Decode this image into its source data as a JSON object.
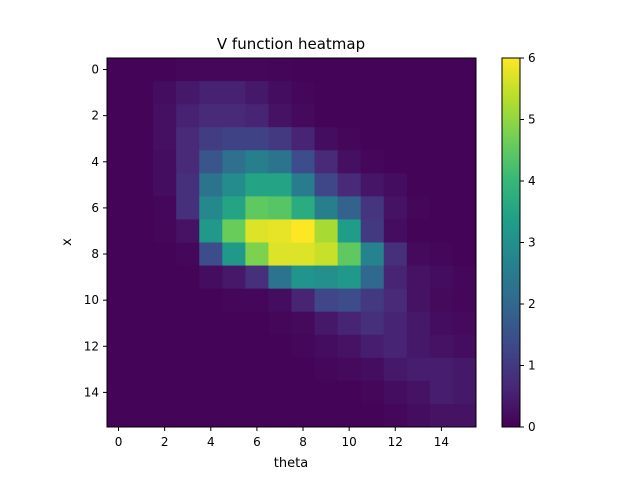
{
  "chart_data": {
    "type": "heatmap",
    "title": "V function heatmap",
    "xlabel": "theta",
    "ylabel": "x",
    "x_ticks": [
      0,
      2,
      4,
      6,
      8,
      10,
      12,
      14
    ],
    "y_ticks": [
      0,
      2,
      4,
      6,
      8,
      10,
      12,
      14
    ],
    "colorbar": {
      "min": 0,
      "max": 6,
      "ticks": [
        0,
        1,
        2,
        3,
        4,
        5,
        6
      ]
    },
    "colormap": [
      "#440154",
      "#482878",
      "#3e4989",
      "#31688e",
      "#26828e",
      "#1f9e89",
      "#35b779",
      "#6ece58",
      "#b5de2b",
      "#fde725"
    ],
    "rows": 16,
    "cols": 16,
    "values": [
      [
        0.05,
        0.05,
        0.05,
        0.1,
        0.1,
        0.1,
        0.1,
        0.08,
        0.05,
        0.05,
        0.05,
        0.05,
        0.05,
        0.05,
        0.05,
        0.05
      ],
      [
        0.05,
        0.05,
        0.2,
        0.4,
        0.55,
        0.55,
        0.4,
        0.2,
        0.1,
        0.05,
        0.05,
        0.05,
        0.05,
        0.05,
        0.05,
        0.05
      ],
      [
        0.05,
        0.05,
        0.25,
        0.55,
        0.7,
        0.7,
        0.6,
        0.3,
        0.15,
        0.05,
        0.05,
        0.05,
        0.05,
        0.05,
        0.05,
        0.05
      ],
      [
        0.05,
        0.05,
        0.25,
        0.7,
        1.1,
        1.2,
        1.2,
        1.0,
        0.6,
        0.2,
        0.1,
        0.05,
        0.05,
        0.05,
        0.05,
        0.05
      ],
      [
        0.05,
        0.05,
        0.2,
        0.7,
        1.6,
        2.2,
        2.6,
        2.3,
        1.4,
        0.7,
        0.25,
        0.1,
        0.05,
        0.05,
        0.05,
        0.05
      ],
      [
        0.05,
        0.05,
        0.2,
        0.8,
        2.3,
        2.9,
        3.5,
        3.5,
        2.5,
        1.3,
        0.7,
        0.35,
        0.2,
        0.05,
        0.05,
        0.05
      ],
      [
        0.05,
        0.05,
        0.1,
        0.8,
        2.8,
        3.5,
        4.5,
        4.4,
        3.7,
        2.6,
        1.9,
        0.9,
        0.3,
        0.1,
        0.05,
        0.05
      ],
      [
        0.05,
        0.05,
        0.1,
        0.3,
        3.2,
        4.6,
        5.7,
        5.8,
        6.0,
        5.2,
        3.3,
        1.0,
        0.2,
        0.05,
        0.05,
        0.05
      ],
      [
        0.05,
        0.05,
        0.05,
        0.1,
        1.4,
        3.2,
        4.8,
        5.7,
        5.7,
        5.5,
        4.5,
        2.7,
        0.8,
        0.15,
        0.1,
        0.05
      ],
      [
        0.05,
        0.05,
        0.05,
        0.05,
        0.2,
        0.4,
        0.8,
        2.3,
        3.1,
        3.0,
        3.2,
        2.0,
        0.6,
        0.3,
        0.2,
        0.1
      ],
      [
        0.05,
        0.05,
        0.05,
        0.05,
        0.05,
        0.1,
        0.1,
        0.2,
        0.6,
        1.3,
        1.4,
        1.0,
        0.7,
        0.3,
        0.15,
        0.1
      ],
      [
        0.05,
        0.05,
        0.05,
        0.05,
        0.05,
        0.05,
        0.05,
        0.1,
        0.15,
        0.4,
        0.6,
        0.8,
        0.6,
        0.4,
        0.2,
        0.15
      ],
      [
        0.05,
        0.05,
        0.05,
        0.05,
        0.05,
        0.05,
        0.05,
        0.05,
        0.1,
        0.2,
        0.3,
        0.5,
        0.6,
        0.4,
        0.3,
        0.2
      ],
      [
        0.05,
        0.05,
        0.05,
        0.05,
        0.05,
        0.05,
        0.05,
        0.05,
        0.05,
        0.1,
        0.15,
        0.2,
        0.4,
        0.5,
        0.5,
        0.4
      ],
      [
        0.05,
        0.05,
        0.05,
        0.05,
        0.05,
        0.05,
        0.05,
        0.05,
        0.05,
        0.05,
        0.05,
        0.1,
        0.2,
        0.3,
        0.5,
        0.4
      ],
      [
        0.05,
        0.05,
        0.05,
        0.05,
        0.05,
        0.05,
        0.05,
        0.05,
        0.05,
        0.05,
        0.05,
        0.05,
        0.1,
        0.2,
        0.3,
        0.3
      ]
    ]
  }
}
